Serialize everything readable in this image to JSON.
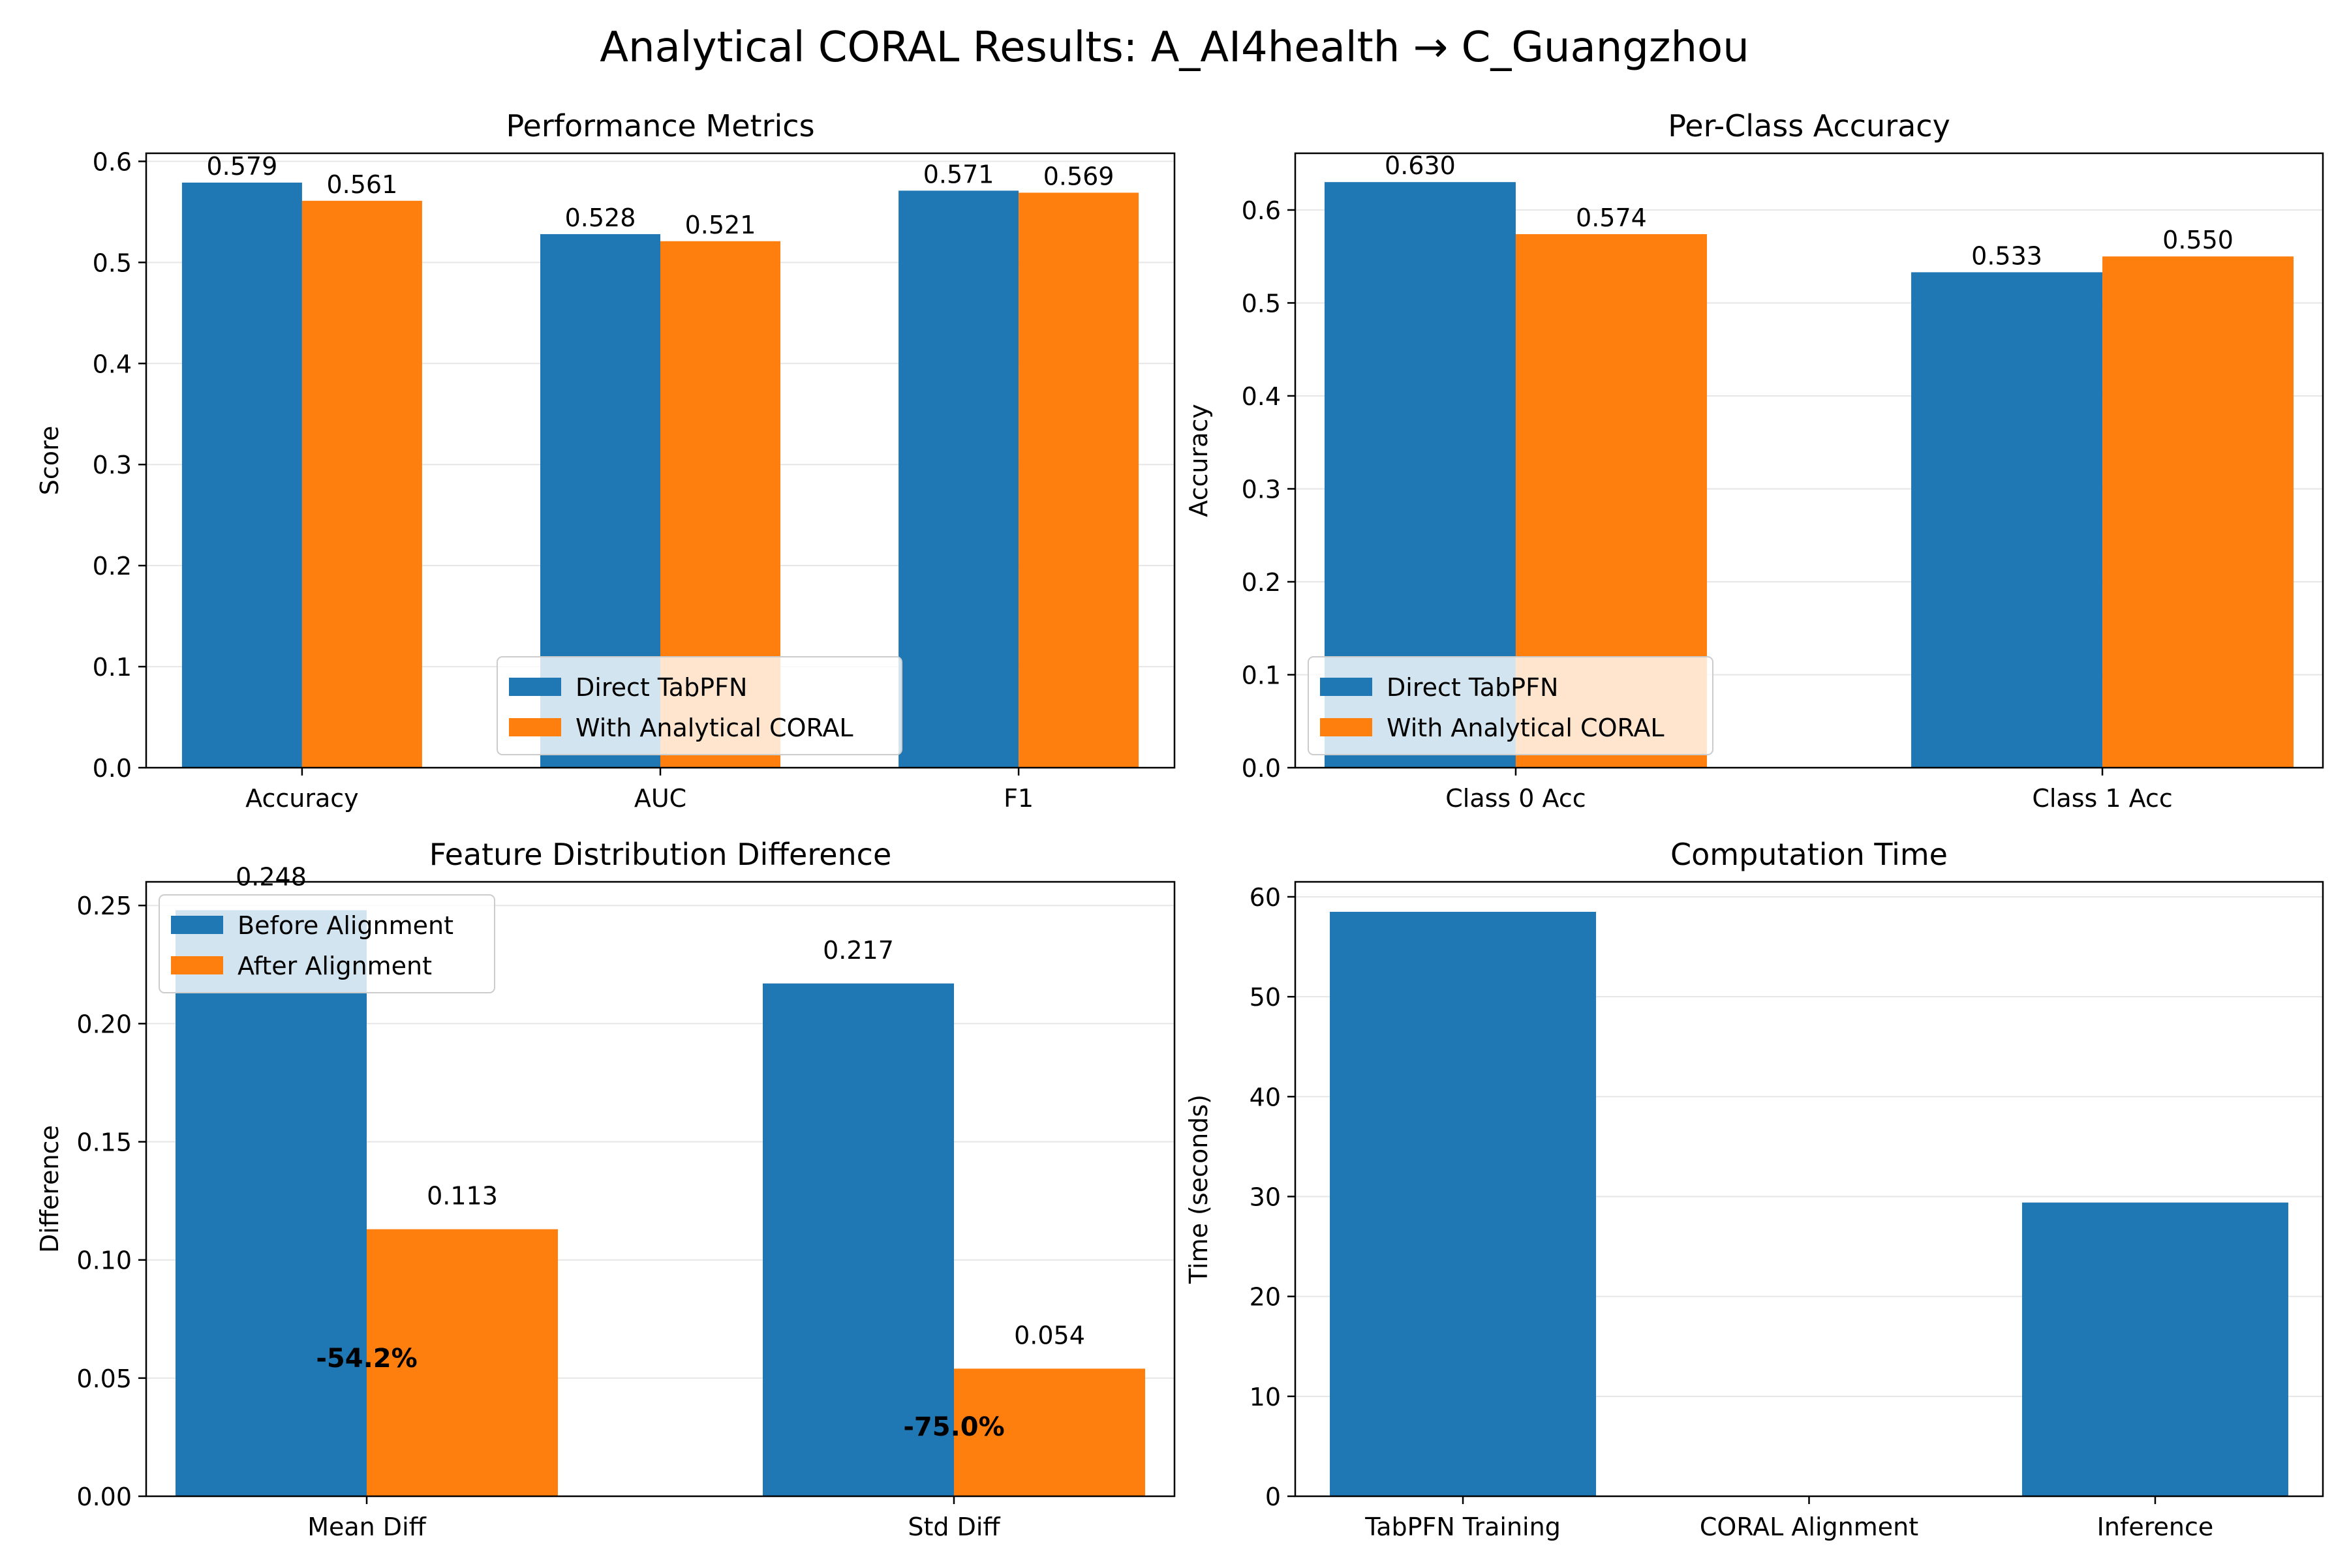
{
  "suptitle": "Analytical CORAL Results: A_AI4health → C_Guangzhou",
  "colors": {
    "blue": "#1f77b4",
    "orange": "#ff7f0e",
    "grid": "#e6e6e6"
  },
  "chart_data": [
    {
      "id": "performance",
      "type": "bar",
      "title": "Performance Metrics",
      "xlabel": "",
      "ylabel": "Score",
      "categories": [
        "Accuracy",
        "AUC",
        "F1"
      ],
      "series": [
        {
          "name": "Direct TabPFN",
          "values": [
            0.579,
            0.528,
            0.571
          ],
          "labels": [
            "0.579",
            "0.528",
            "0.571"
          ]
        },
        {
          "name": "With Analytical CORAL",
          "values": [
            0.561,
            0.521,
            0.569
          ],
          "labels": [
            "0.561",
            "0.521",
            "0.569"
          ]
        }
      ],
      "ylim": [
        0,
        0.608
      ],
      "yticks": [
        0.0,
        0.1,
        0.2,
        0.3,
        0.4,
        0.5,
        0.6
      ],
      "ytick_labels": [
        "0.0",
        "0.1",
        "0.2",
        "0.3",
        "0.4",
        "0.5",
        "0.6"
      ],
      "grid": "y",
      "legend": "lower-center"
    },
    {
      "id": "per_class",
      "type": "bar",
      "title": "Per-Class Accuracy",
      "xlabel": "",
      "ylabel": "Accuracy",
      "categories": [
        "Class 0 Acc",
        "Class 1 Acc"
      ],
      "series": [
        {
          "name": "Direct TabPFN",
          "values": [
            0.63,
            0.533
          ],
          "labels": [
            "0.630",
            "0.533"
          ]
        },
        {
          "name": "With Analytical CORAL",
          "values": [
            0.574,
            0.55
          ],
          "labels": [
            "0.574",
            "0.550"
          ]
        }
      ],
      "ylim": [
        0,
        0.661
      ],
      "yticks": [
        0.0,
        0.1,
        0.2,
        0.3,
        0.4,
        0.5,
        0.6
      ],
      "ytick_labels": [
        "0.0",
        "0.1",
        "0.2",
        "0.3",
        "0.4",
        "0.5",
        "0.6"
      ],
      "grid": "y",
      "legend": "lower-left"
    },
    {
      "id": "feature_diff",
      "type": "bar",
      "title": "Feature Distribution Difference",
      "xlabel": "",
      "ylabel": "Difference",
      "categories": [
        "Mean Diff",
        "Std Diff"
      ],
      "series": [
        {
          "name": "Before Alignment",
          "values": [
            0.248,
            0.217
          ],
          "labels": [
            "0.248",
            "0.217"
          ]
        },
        {
          "name": "After Alignment",
          "values": [
            0.113,
            0.054
          ],
          "labels": [
            "0.113",
            "0.054"
          ]
        }
      ],
      "annotations": [
        {
          "text": "-54.2%",
          "category": "Mean Diff",
          "y": 0.0585
        },
        {
          "text": "-75.0%",
          "category": "Std Diff",
          "y": 0.0295
        }
      ],
      "ylim": [
        0,
        0.26
      ],
      "yticks": [
        0.0,
        0.05,
        0.1,
        0.15,
        0.2,
        0.25
      ],
      "ytick_labels": [
        "0.00",
        "0.05",
        "0.10",
        "0.15",
        "0.20",
        "0.25"
      ],
      "grid": "y",
      "legend": "upper-left"
    },
    {
      "id": "computation_time",
      "type": "bar",
      "title": "Computation Time",
      "xlabel": "",
      "ylabel": "Time (seconds)",
      "categories": [
        "TabPFN Training",
        "CORAL Alignment",
        "Inference"
      ],
      "values": [
        58.5,
        0.02,
        29.4
      ],
      "ylim": [
        0,
        61.5
      ],
      "yticks": [
        0,
        10,
        20,
        30,
        40,
        50,
        60
      ],
      "ytick_labels": [
        "0",
        "10",
        "20",
        "30",
        "40",
        "50",
        "60"
      ],
      "grid": "y"
    }
  ]
}
